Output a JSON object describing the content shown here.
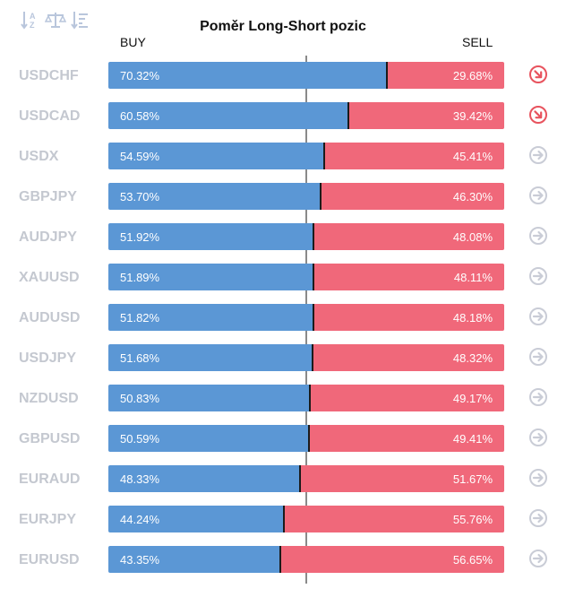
{
  "title": "Poměr Long-Short pozic",
  "columns": {
    "buy": "BUY",
    "sell": "SELL"
  },
  "toolbar": [
    {
      "icon": "sort-alpha-icon"
    },
    {
      "icon": "balance-scale-icon"
    },
    {
      "icon": "sort-descending-icon"
    }
  ],
  "colors": {
    "buy": "#5b97d5",
    "sell": "#f0687a",
    "arrow_down": "#e8535e",
    "arrow_neutral": "#c9ccd6",
    "symbol_text": "#c4c8d0"
  },
  "rows": [
    {
      "symbol": "USDCHF",
      "buy_pct": 70.32,
      "buy_label": "70.32%",
      "sell_label": "29.68%",
      "trend": "down"
    },
    {
      "symbol": "USDCAD",
      "buy_pct": 60.58,
      "buy_label": "60.58%",
      "sell_label": "39.42%",
      "trend": "down"
    },
    {
      "symbol": "USDX",
      "buy_pct": 54.59,
      "buy_label": "54.59%",
      "sell_label": "45.41%",
      "trend": "neutral"
    },
    {
      "symbol": "GBPJPY",
      "buy_pct": 53.7,
      "buy_label": "53.70%",
      "sell_label": "46.30%",
      "trend": "neutral"
    },
    {
      "symbol": "AUDJPY",
      "buy_pct": 51.92,
      "buy_label": "51.92%",
      "sell_label": "48.08%",
      "trend": "neutral"
    },
    {
      "symbol": "XAUUSD",
      "buy_pct": 51.89,
      "buy_label": "51.89%",
      "sell_label": "48.11%",
      "trend": "neutral"
    },
    {
      "symbol": "AUDUSD",
      "buy_pct": 51.82,
      "buy_label": "51.82%",
      "sell_label": "48.18%",
      "trend": "neutral"
    },
    {
      "symbol": "USDJPY",
      "buy_pct": 51.68,
      "buy_label": "51.68%",
      "sell_label": "48.32%",
      "trend": "neutral"
    },
    {
      "symbol": "NZDUSD",
      "buy_pct": 50.83,
      "buy_label": "50.83%",
      "sell_label": "49.17%",
      "trend": "neutral"
    },
    {
      "symbol": "GBPUSD",
      "buy_pct": 50.59,
      "buy_label": "50.59%",
      "sell_label": "49.41%",
      "trend": "neutral"
    },
    {
      "symbol": "EURAUD",
      "buy_pct": 48.33,
      "buy_label": "48.33%",
      "sell_label": "51.67%",
      "trend": "neutral"
    },
    {
      "symbol": "EURJPY",
      "buy_pct": 44.24,
      "buy_label": "44.24%",
      "sell_label": "55.76%",
      "trend": "neutral"
    },
    {
      "symbol": "EURUSD",
      "buy_pct": 43.35,
      "buy_label": "43.35%",
      "sell_label": "56.65%",
      "trend": "neutral"
    }
  ]
}
